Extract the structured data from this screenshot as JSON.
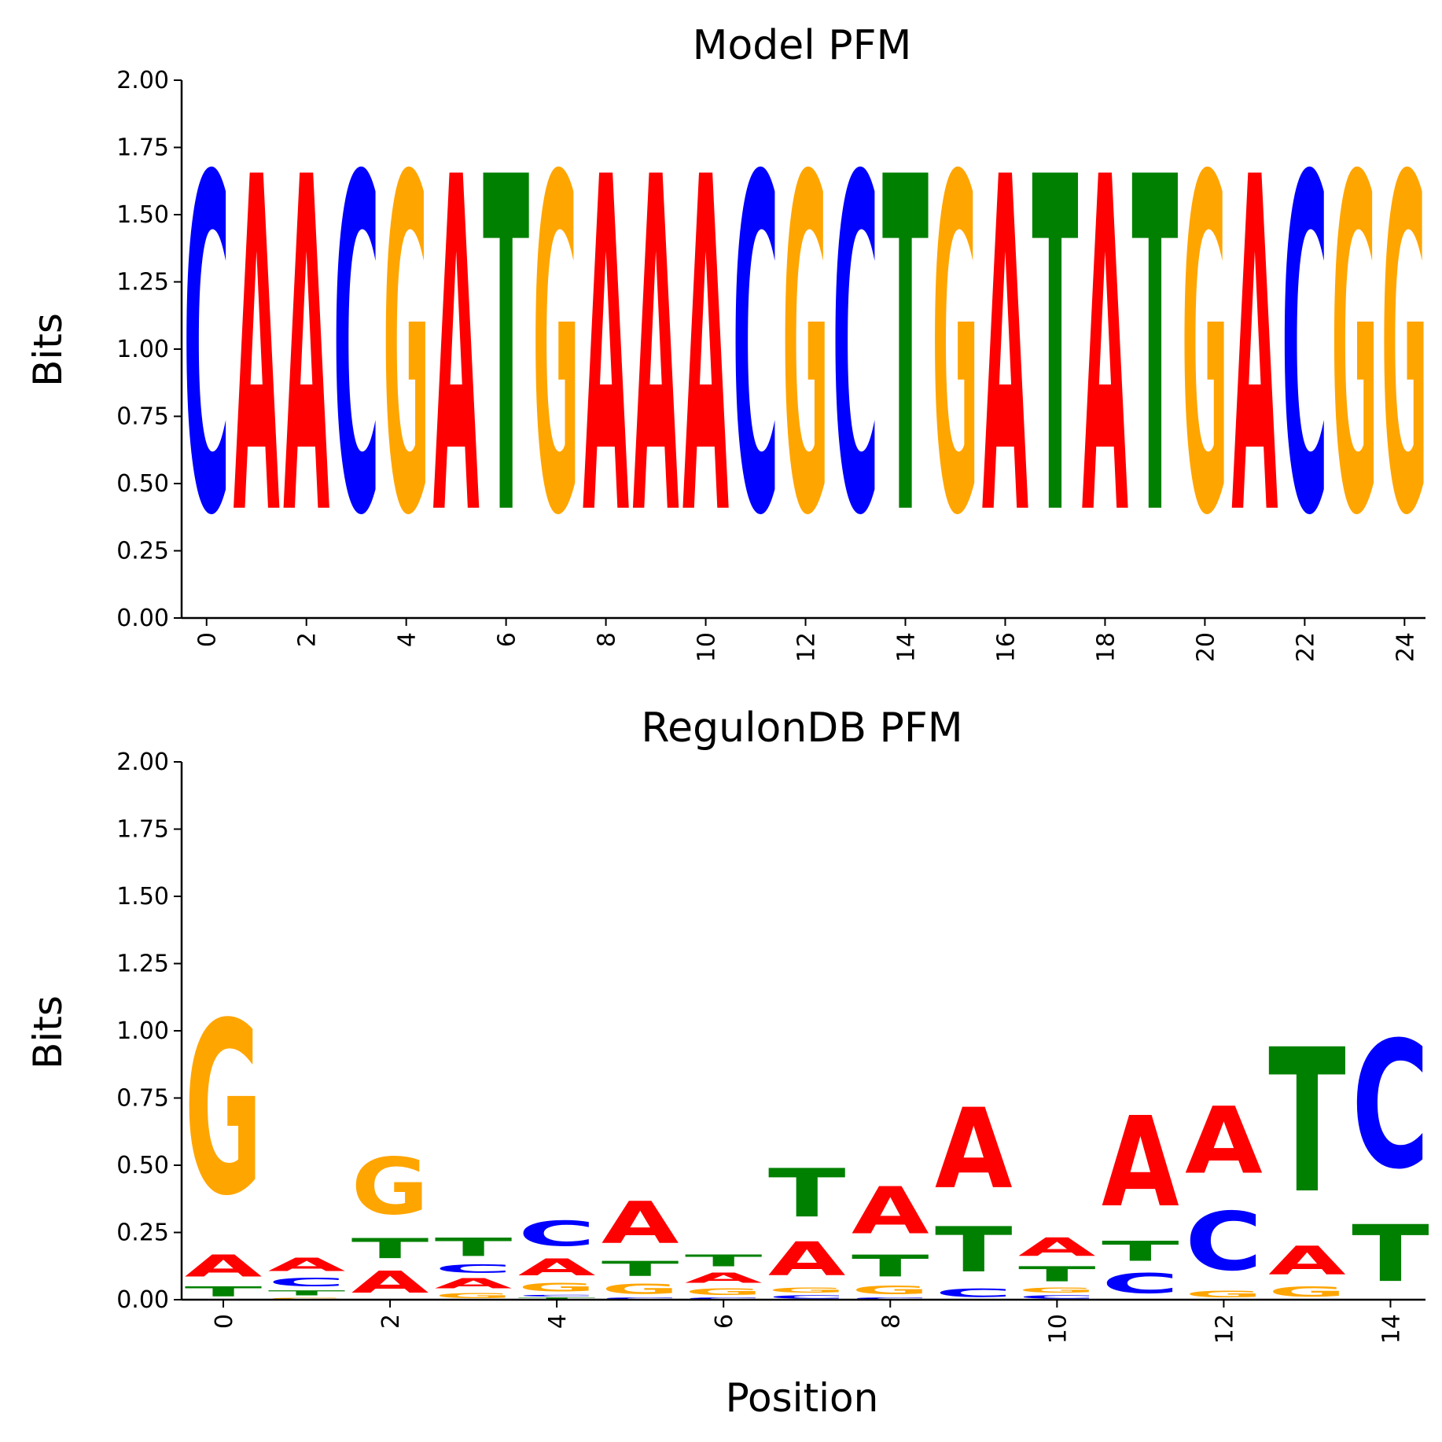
{
  "colors": {
    "A": "#ff0000",
    "C": "#0000ff",
    "G": "#ffa500",
    "T": "#008000"
  },
  "chart_data": [
    {
      "type": "sequence-logo",
      "title": "Model PFM",
      "xlabel": "",
      "ylabel": "Bits",
      "ylim": [
        0,
        2
      ],
      "yticks": [
        "0.00",
        "0.25",
        "0.50",
        "0.75",
        "1.00",
        "1.25",
        "1.50",
        "1.75",
        "2.00"
      ],
      "xticks": [
        "0",
        "2",
        "4",
        "6",
        "8",
        "10",
        "12",
        "14",
        "16",
        "18",
        "20",
        "22",
        "24"
      ],
      "positions": [
        [
          [
            "C",
            2.0
          ]
        ],
        [
          [
            "A",
            2.0
          ]
        ],
        [
          [
            "A",
            2.0
          ]
        ],
        [
          [
            "C",
            2.0
          ]
        ],
        [
          [
            "G",
            2.0
          ]
        ],
        [
          [
            "A",
            2.0
          ]
        ],
        [
          [
            "T",
            2.0
          ]
        ],
        [
          [
            "G",
            2.0
          ]
        ],
        [
          [
            "A",
            2.0
          ]
        ],
        [
          [
            "A",
            2.0
          ]
        ],
        [
          [
            "A",
            2.0
          ]
        ],
        [
          [
            "C",
            2.0
          ]
        ],
        [
          [
            "G",
            2.0
          ]
        ],
        [
          [
            "C",
            2.0
          ]
        ],
        [
          [
            "T",
            2.0
          ]
        ],
        [
          [
            "G",
            2.0
          ]
        ],
        [
          [
            "A",
            2.0
          ]
        ],
        [
          [
            "T",
            2.0
          ]
        ],
        [
          [
            "A",
            2.0
          ]
        ],
        [
          [
            "T",
            2.0
          ]
        ],
        [
          [
            "G",
            2.0
          ]
        ],
        [
          [
            "A",
            2.0
          ]
        ],
        [
          [
            "C",
            2.0
          ]
        ],
        [
          [
            "G",
            2.0
          ]
        ],
        [
          [
            "G",
            2.0
          ]
        ]
      ]
    },
    {
      "type": "sequence-logo",
      "title": "RegulonDB PFM",
      "xlabel": "Position",
      "ylabel": "Bits",
      "ylim": [
        0,
        2
      ],
      "yticks": [
        "0.00",
        "0.25",
        "0.50",
        "0.75",
        "1.00",
        "1.25",
        "1.50",
        "1.75",
        "2.00"
      ],
      "xticks": [
        "0",
        "2",
        "4",
        "6",
        "8",
        "10",
        "12",
        "14"
      ],
      "positions": [
        [
          [
            "T",
            0.06
          ],
          [
            "A",
            0.13
          ],
          [
            "G",
            1.03
          ]
        ],
        [
          [
            "G",
            0.01
          ],
          [
            "T",
            0.03
          ],
          [
            "C",
            0.05
          ],
          [
            "A",
            0.08
          ]
        ],
        [
          [
            "A",
            0.13
          ],
          [
            "T",
            0.12
          ],
          [
            "G",
            0.34
          ]
        ],
        [
          [
            "G",
            0.03
          ],
          [
            "A",
            0.06
          ],
          [
            "C",
            0.05
          ],
          [
            "T",
            0.11
          ]
        ],
        [
          [
            "T",
            0.01
          ],
          [
            "C",
            0.01
          ],
          [
            "G",
            0.05
          ],
          [
            "A",
            0.1
          ],
          [
            "C",
            0.15
          ]
        ],
        [
          [
            "C",
            0.01
          ],
          [
            "G",
            0.06
          ],
          [
            "T",
            0.09
          ],
          [
            "A",
            0.25
          ]
        ],
        [
          [
            "C",
            0.01
          ],
          [
            "G",
            0.04
          ],
          [
            "A",
            0.06
          ],
          [
            "T",
            0.07
          ]
        ],
        [
          [
            "C",
            0.02
          ],
          [
            "G",
            0.03
          ],
          [
            "A",
            0.2
          ],
          [
            "T",
            0.29
          ]
        ],
        [
          [
            "C",
            0.01
          ],
          [
            "G",
            0.05
          ],
          [
            "T",
            0.13
          ],
          [
            "A",
            0.28
          ]
        ],
        [
          [
            "C",
            0.05
          ],
          [
            "T",
            0.27
          ],
          [
            "A",
            0.48
          ]
        ],
        [
          [
            "C",
            0.02
          ],
          [
            "G",
            0.03
          ],
          [
            "T",
            0.09
          ],
          [
            "A",
            0.11
          ]
        ],
        [
          [
            "C",
            0.12
          ],
          [
            "T",
            0.12
          ],
          [
            "A",
            0.54
          ]
        ],
        [
          [
            "G",
            0.04
          ],
          [
            "C",
            0.35
          ],
          [
            "A",
            0.4
          ]
        ],
        [
          [
            "G",
            0.06
          ],
          [
            "A",
            0.17
          ],
          [
            "T",
            0.86
          ]
        ],
        [
          [
            "T",
            0.34
          ],
          [
            "C",
            0.76
          ]
        ]
      ]
    }
  ]
}
